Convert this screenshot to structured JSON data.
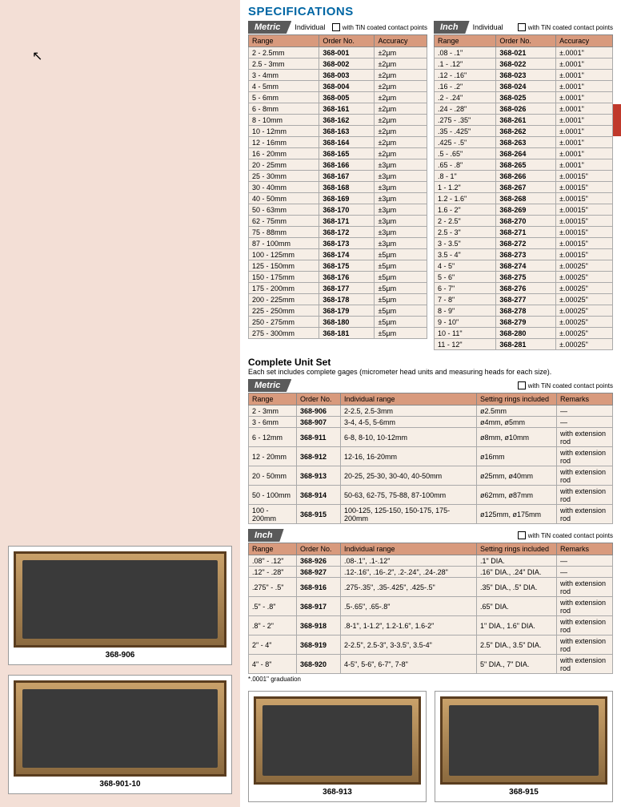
{
  "title": "SPECIFICATIONS",
  "metric": {
    "tab": "Metric",
    "sub": "Individual",
    "boxlabel": "with TiN coated contact points",
    "headers": [
      "Range",
      "Order No.",
      "Accuracy"
    ],
    "rows": [
      [
        "2 - 2.5mm",
        "368-001",
        "±2µm"
      ],
      [
        "2.5 - 3mm",
        "368-002",
        "±2µm"
      ],
      [
        "3 - 4mm",
        "368-003",
        "±2µm"
      ],
      [
        "4 - 5mm",
        "368-004",
        "±2µm"
      ],
      [
        "5 - 6mm",
        "368-005",
        "±2µm"
      ],
      [
        "6 - 8mm",
        "368-161",
        "±2µm"
      ],
      [
        "8 - 10mm",
        "368-162",
        "±2µm"
      ],
      [
        "10 - 12mm",
        "368-163",
        "±2µm"
      ],
      [
        "12 - 16mm",
        "368-164",
        "±2µm"
      ],
      [
        "16 - 20mm",
        "368-165",
        "±2µm"
      ],
      [
        "20 - 25mm",
        "368-166",
        "±3µm"
      ],
      [
        "25 - 30mm",
        "368-167",
        "±3µm"
      ],
      [
        "30 - 40mm",
        "368-168",
        "±3µm"
      ],
      [
        "40 - 50mm",
        "368-169",
        "±3µm"
      ],
      [
        "50 - 63mm",
        "368-170",
        "±3µm"
      ],
      [
        "62 - 75mm",
        "368-171",
        "±3µm"
      ],
      [
        "75 - 88mm",
        "368-172",
        "±3µm"
      ],
      [
        "87 - 100mm",
        "368-173",
        "±3µm"
      ],
      [
        "100 - 125mm",
        "368-174",
        "±5µm"
      ],
      [
        "125 - 150mm",
        "368-175",
        "±5µm"
      ],
      [
        "150 - 175mm",
        "368-176",
        "±5µm"
      ],
      [
        "175 - 200mm",
        "368-177",
        "±5µm"
      ],
      [
        "200 - 225mm",
        "368-178",
        "±5µm"
      ],
      [
        "225 - 250mm",
        "368-179",
        "±5µm"
      ],
      [
        "250 - 275mm",
        "368-180",
        "±5µm"
      ],
      [
        "275 - 300mm",
        "368-181",
        "±5µm"
      ]
    ]
  },
  "inch": {
    "tab": "Inch",
    "sub": "Individual",
    "boxlabel": "with TiN coated contact points",
    "headers": [
      "Range",
      "Order No.",
      "Accuracy"
    ],
    "rows": [
      [
        ".08 - .1\"",
        "368-021",
        "±.0001\""
      ],
      [
        ".1 - .12\"",
        "368-022",
        "±.0001\""
      ],
      [
        ".12 - .16\"",
        "368-023",
        "±.0001\""
      ],
      [
        ".16 - .2\"",
        "368-024",
        "±.0001\""
      ],
      [
        ".2 - .24\"",
        "368-025",
        "±.0001\""
      ],
      [
        ".24 - .28\"",
        "368-026",
        "±.0001\""
      ],
      [
        ".275 - .35\"",
        "368-261",
        "±.0001\""
      ],
      [
        ".35 - .425\"",
        "368-262",
        "±.0001\""
      ],
      [
        ".425 - .5\"",
        "368-263",
        "±.0001\""
      ],
      [
        ".5 - .65\"",
        "368-264",
        "±.0001\""
      ],
      [
        ".65 - .8\"",
        "368-265",
        "±.0001\""
      ],
      [
        ".8 - 1\"",
        "368-266",
        "±.00015\""
      ],
      [
        "1 - 1.2\"",
        "368-267",
        "±.00015\""
      ],
      [
        "1.2 - 1.6\"",
        "368-268",
        "±.00015\""
      ],
      [
        "1.6 - 2\"",
        "368-269",
        "±.00015\""
      ],
      [
        "2 - 2.5\"",
        "368-270",
        "±.00015\""
      ],
      [
        "2.5 - 3\"",
        "368-271",
        "±.00015\""
      ],
      [
        "3 - 3.5\"",
        "368-272",
        "±.00015\""
      ],
      [
        "3.5 - 4\"",
        "368-273",
        "±.00015\""
      ],
      [
        "4 - 5\"",
        "368-274",
        "±.00025\""
      ],
      [
        "5 - 6\"",
        "368-275",
        "±.00025\""
      ],
      [
        "6 - 7\"",
        "368-276",
        "±.00025\""
      ],
      [
        "7 - 8\"",
        "368-277",
        "±.00025\""
      ],
      [
        "8 - 9\"",
        "368-278",
        "±.00025\""
      ],
      [
        "9 - 10\"",
        "368-279",
        "±.00025\""
      ],
      [
        "10 - 11\"",
        "368-280",
        "±.00025\""
      ],
      [
        "11 - 12\"",
        "368-281",
        "±.00025\""
      ]
    ]
  },
  "cus": {
    "title": "Complete Unit Set",
    "desc": "Each set includes complete gages (micrometer head units and measuring heads for each size)."
  },
  "set_metric": {
    "tab": "Metric",
    "boxlabel": "with TiN coated contact points",
    "headers": [
      "Range",
      "Order No.",
      "Individual range",
      "Setting rings included",
      "Remarks"
    ],
    "rows": [
      [
        "2 - 3mm",
        "368-906",
        "2-2.5, 2.5-3mm",
        "ø2.5mm",
        "—"
      ],
      [
        "3 - 6mm",
        "368-907",
        "3-4, 4-5, 5-6mm",
        "ø4mm, ø5mm",
        "—"
      ],
      [
        "6 - 12mm",
        "368-911",
        "6-8, 8-10, 10-12mm",
        "ø8mm, ø10mm",
        "with extension rod"
      ],
      [
        "12 - 20mm",
        "368-912",
        "12-16, 16-20mm",
        "ø16mm",
        "with extension rod"
      ],
      [
        "20 - 50mm",
        "368-913",
        "20-25, 25-30, 30-40, 40-50mm",
        "ø25mm, ø40mm",
        "with extension rod"
      ],
      [
        "50 - 100mm",
        "368-914",
        "50-63, 62-75, 75-88, 87-100mm",
        "ø62mm, ø87mm",
        "with extension rod"
      ],
      [
        "100 - 200mm",
        "368-915",
        "100-125, 125-150, 150-175, 175-200mm",
        "ø125mm, ø175mm",
        "with extension rod"
      ]
    ]
  },
  "set_inch": {
    "tab": "Inch",
    "boxlabel": "with TiN coated contact points",
    "headers": [
      "Range",
      "Order No.",
      "Individual range",
      "Setting rings included",
      "Remarks"
    ],
    "rows": [
      [
        ".08\" - .12\"",
        "368-926",
        ".08-.1\", .1-.12\"",
        ".1\" DIA.",
        "—"
      ],
      [
        ".12\" - .28\"",
        "368-927",
        ".12-.16\", .16-.2\", .2-.24\", .24-.28\"",
        ".16\" DIA., .24\" DIA.",
        "—"
      ],
      [
        ".275\" - .5\"",
        "368-916",
        ".275-.35\", .35-.425\", .425-.5\"",
        ".35\" DIA., .5\" DIA.",
        "with extension rod"
      ],
      [
        ".5\" - .8\"",
        "368-917",
        ".5-.65\", .65-.8\"",
        ".65\" DIA.",
        "with extension rod"
      ],
      [
        ".8\" - 2\"",
        "368-918",
        ".8-1\", 1-1.2\", 1.2-1.6\", 1.6-2\"",
        "1\" DIA., 1.6\" DIA.",
        "with extension rod"
      ],
      [
        "2\" - 4\"",
        "368-919",
        "2-2.5\", 2.5-3\", 3-3.5\", 3.5-4\"",
        "2.5\" DIA., 3.5\" DIA.",
        "with extension rod"
      ],
      [
        "4\" - 8\"",
        "368-920",
        "4-5\", 5-6\", 6-7\", 7-8\"",
        "5\" DIA., 7\" DIA.",
        "with extension rod"
      ]
    ]
  },
  "footnote": "*.0001\" graduation",
  "captions": {
    "p1": "368-906",
    "p2": "368-901-10",
    "p3": "368-913",
    "p4": "368-915"
  }
}
